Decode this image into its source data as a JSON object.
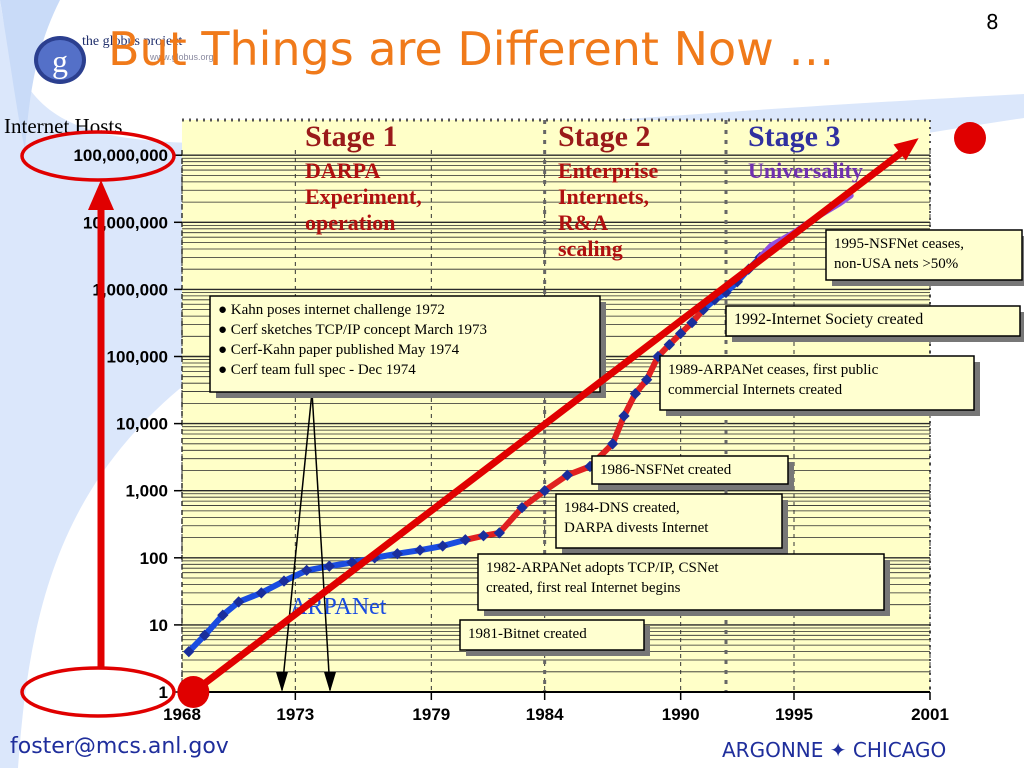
{
  "slide": {
    "title": "But Things are Different Now …",
    "page_number": "8",
    "logo_text": "the globus project",
    "logo_url": "www.globus.org",
    "logo_letter": "g",
    "footer_email": "foster@mcs.anl.gov",
    "footer_org": "ARGONNE ✦ CHICAGO"
  },
  "colors": {
    "title": "#f07a1a",
    "stage_title": "#9a1a1a",
    "stage3_title": "#3030a0",
    "stage_sub": "#b01010",
    "stage3_sub": "#7030b0",
    "plot_bg": "#ffffc8",
    "blue_series": "#1a4ce0",
    "red_series": "#e02020",
    "purple_series": "#9050e0",
    "trend": "#e00000"
  },
  "chart_data": {
    "type": "line",
    "ylabel": "Internet Hosts",
    "y_scale": "log",
    "ylim": [
      1,
      300000000
    ],
    "xlim": [
      1968,
      2001
    ],
    "x_ticks": [
      "1968",
      "1973",
      "1979",
      "1984",
      "1990",
      "1995",
      "2001"
    ],
    "y_ticks": [
      {
        "value": 1,
        "label": "1"
      },
      {
        "value": 10,
        "label": "10"
      },
      {
        "value": 100,
        "label": "100"
      },
      {
        "value": 1000,
        "label": "1,000"
      },
      {
        "value": 10000,
        "label": "10,000"
      },
      {
        "value": 100000,
        "label": "100,000"
      },
      {
        "value": 1000000,
        "label": "1,000,000"
      },
      {
        "value": 10000000,
        "label": "10,000,000"
      },
      {
        "value": 100000000,
        "label": "100,000,000"
      }
    ],
    "stages": [
      {
        "title": "Stage 1",
        "subtitle": [
          "DARPA",
          "Experiment,",
          "operation"
        ],
        "x_start": 1968,
        "x_end": 1984
      },
      {
        "title": "Stage 2",
        "subtitle": [
          "Enterprise",
          "Internets,",
          "R&A",
          "scaling"
        ],
        "x_start": 1984,
        "x_end": 1992
      },
      {
        "title": "Stage 3",
        "subtitle": [
          "Universality"
        ],
        "x_start": 1992,
        "x_end": 2001
      }
    ],
    "series": [
      {
        "name": "ARPANet",
        "color_key": "blue_series",
        "points": [
          [
            1968.3,
            4
          ],
          [
            1969,
            7
          ],
          [
            1969.8,
            14
          ],
          [
            1970.5,
            22
          ],
          [
            1971.5,
            30
          ],
          [
            1972.5,
            45
          ],
          [
            1973.5,
            65
          ],
          [
            1974.5,
            75
          ],
          [
            1975.5,
            85
          ],
          [
            1976.5,
            100
          ],
          [
            1977.5,
            115
          ],
          [
            1978.5,
            130
          ],
          [
            1979.5,
            150
          ],
          [
            1980.5,
            185
          ]
        ]
      },
      {
        "name": "",
        "color_key": "red_series",
        "points": [
          [
            1980.5,
            185
          ],
          [
            1981.3,
            213
          ],
          [
            1982,
            235
          ],
          [
            1983,
            560
          ],
          [
            1984,
            1000
          ],
          [
            1985,
            1700
          ],
          [
            1986,
            2300
          ],
          [
            1987,
            5000
          ],
          [
            1987.5,
            13000
          ],
          [
            1988,
            28000
          ],
          [
            1988.5,
            45000
          ],
          [
            1989,
            100000
          ],
          [
            1989.5,
            150000
          ],
          [
            1990,
            220000
          ],
          [
            1990.5,
            320000
          ],
          [
            1991,
            500000
          ]
        ]
      },
      {
        "name": "",
        "color_key": "blue_series",
        "points": [
          [
            1991,
            500000
          ],
          [
            1991.5,
            700000
          ],
          [
            1992,
            900000
          ],
          [
            1992.5,
            1300000
          ],
          [
            1993,
            2000000
          ],
          [
            1993.5,
            3000000
          ]
        ]
      },
      {
        "name": "",
        "color_key": "purple_series",
        "points": [
          [
            1993.5,
            3000000
          ],
          [
            1994,
            4500000
          ],
          [
            1995,
            7000000
          ],
          [
            1996,
            12000000
          ],
          [
            1997,
            19000000
          ],
          [
            1997.5,
            25000000
          ]
        ]
      }
    ],
    "series_label": "ARPANet",
    "trend_line": {
      "from": [
        1968.5,
        1
      ],
      "to": [
        2000.5,
        180000000
      ]
    },
    "annotations": [
      {
        "id": "milestones-1972",
        "lines": [
          "● Kahn poses internet challenge 1972",
          "● Cerf sketches TCP/IP concept March 1973",
          "● Cerf-Kahn paper published May 1974",
          "● Cerf team full spec - Dec 1974"
        ]
      },
      {
        "id": "nsfnet-ceases",
        "lines": [
          "1995-NSFNet ceases,",
          "non-USA nets >50%"
        ]
      },
      {
        "id": "internet-society",
        "lines": [
          "1992-Internet Society created"
        ]
      },
      {
        "id": "arpanet-ceases",
        "lines": [
          "1989-ARPANet ceases, first public",
          "commercial Internets created"
        ]
      },
      {
        "id": "nsfnet-created",
        "lines": [
          "1986-NSFNet created"
        ]
      },
      {
        "id": "dns-created",
        "lines": [
          "1984-DNS created,",
          "DARPA divests Internet"
        ]
      },
      {
        "id": "tcpip-adopted",
        "lines": [
          "1982-ARPANet adopts TCP/IP, CSNet",
          "created, first real Internet begins"
        ]
      },
      {
        "id": "bitnet-created",
        "lines": [
          "1981-Bitnet created"
        ]
      }
    ]
  }
}
